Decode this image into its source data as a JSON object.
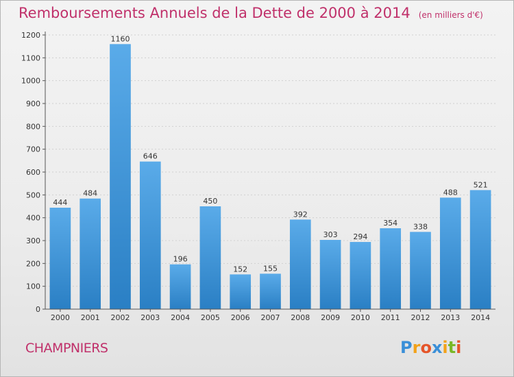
{
  "title": "Remboursements Annuels de la Dette de 2000 à 2014",
  "subtitle": "(en milliers d'€)",
  "commune": "CHAMPNIERS",
  "logo": {
    "letters": [
      {
        "char": "P",
        "color": "#3a8fd8"
      },
      {
        "char": "r",
        "color": "#f2a21a"
      },
      {
        "char": "o",
        "color": "#e5552a"
      },
      {
        "char": "x",
        "color": "#3a8fd8"
      },
      {
        "char": "i",
        "color": "#f2a21a"
      },
      {
        "char": "t",
        "color": "#7ab827"
      },
      {
        "char": "i",
        "color": "#e5552a"
      }
    ]
  },
  "colors": {
    "title": "#c0306a",
    "bar_top": "#5aabe9",
    "bar_bottom": "#2a7fc4",
    "axis": "#555555",
    "grid": "#d0d0d0"
  },
  "chart_data": {
    "type": "bar",
    "categories": [
      "2000",
      "2001",
      "2002",
      "2003",
      "2004",
      "2005",
      "2006",
      "2007",
      "2008",
      "2009",
      "2010",
      "2011",
      "2012",
      "2013",
      "2014"
    ],
    "values": [
      444,
      484,
      1160,
      646,
      196,
      450,
      152,
      155,
      392,
      303,
      294,
      354,
      338,
      488,
      521
    ],
    "data_labels": [
      "444",
      "484",
      "1160",
      "646",
      "196",
      "450",
      "152",
      "155",
      "392",
      "303",
      "294",
      "354",
      "338",
      "488",
      "521"
    ],
    "title": "Remboursements Annuels de la Dette de 2000 à 2014",
    "subtitle": "(en milliers d'€)",
    "ylim": [
      0,
      1200
    ],
    "yticks": [
      0,
      100,
      200,
      300,
      400,
      500,
      600,
      700,
      800,
      900,
      1000,
      1100,
      1200
    ],
    "ytick_labels": [
      "0",
      "100",
      "200",
      "300",
      "400",
      "500",
      "600",
      "700",
      "800",
      "900",
      "1000",
      "1100",
      "1200"
    ],
    "grid": true
  }
}
